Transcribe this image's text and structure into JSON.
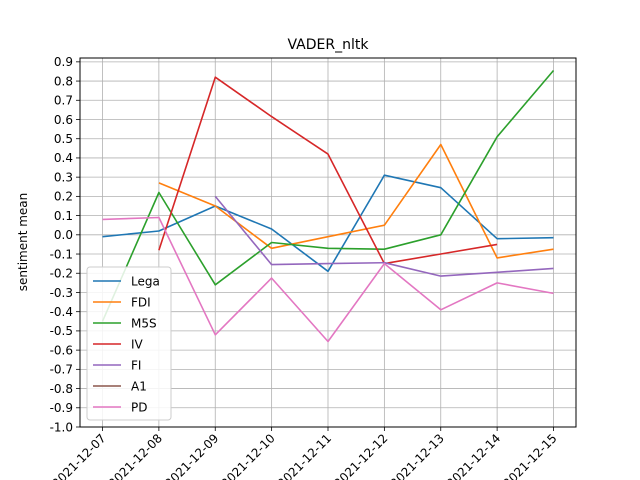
{
  "chart_data": {
    "type": "line",
    "title": "VADER_nltk",
    "xlabel": "",
    "ylabel": "sentiment mean",
    "x": [
      "2021-12-07",
      "2021-12-08",
      "2021-12-09",
      "2021-12-10",
      "2021-12-11",
      "2021-12-12",
      "2021-12-13",
      "2021-12-14",
      "2021-12-15"
    ],
    "x_tick_labels": [
      "2021-12-07",
      "2021-12-08",
      "2021-12-09",
      "2021-12-10",
      "2021-12-11",
      "2021-12-12",
      "2021-12-13",
      "2021-12-14",
      "2021-12-15"
    ],
    "ylim": [
      -1.0,
      0.92
    ],
    "y_ticks": [
      -1.0,
      -0.9,
      -0.8,
      -0.7,
      -0.6,
      -0.5,
      -0.4,
      -0.3,
      -0.2,
      -0.1,
      0.0,
      0.1,
      0.2,
      0.3,
      0.4,
      0.5,
      0.6,
      0.7,
      0.8,
      0.9
    ],
    "grid": true,
    "legend_position": "lower-left",
    "series": [
      {
        "name": "Lega",
        "color": "#1f77b4",
        "values": [
          -0.01,
          0.02,
          0.15,
          0.03,
          -0.19,
          0.31,
          0.245,
          -0.02,
          -0.015
        ]
      },
      {
        "name": "FDI",
        "color": "#ff7f0e",
        "values": [
          null,
          0.27,
          0.15,
          -0.07,
          -0.01,
          0.05,
          0.47,
          -0.12,
          -0.075
        ]
      },
      {
        "name": "M5S",
        "color": "#2ca02c",
        "values": [
          -0.45,
          0.22,
          -0.26,
          -0.04,
          -0.07,
          -0.075,
          0.0,
          0.51,
          0.855
        ]
      },
      {
        "name": "IV",
        "color": "#d62728",
        "values": [
          null,
          -0.08,
          0.82,
          0.615,
          0.42,
          -0.15,
          -0.1,
          -0.05,
          null
        ]
      },
      {
        "name": "FI",
        "color": "#9467bd",
        "values": [
          null,
          null,
          0.2,
          -0.155,
          -0.15,
          -0.145,
          -0.215,
          -0.195,
          -0.175
        ]
      },
      {
        "name": "A1",
        "color": "#8c564b",
        "values": [
          null,
          null,
          null,
          null,
          null,
          null,
          null,
          null,
          null
        ]
      },
      {
        "name": "PD",
        "color": "#e377c2",
        "values": [
          0.08,
          0.09,
          -0.52,
          -0.225,
          -0.555,
          -0.15,
          -0.39,
          -0.25,
          -0.305
        ]
      }
    ]
  }
}
